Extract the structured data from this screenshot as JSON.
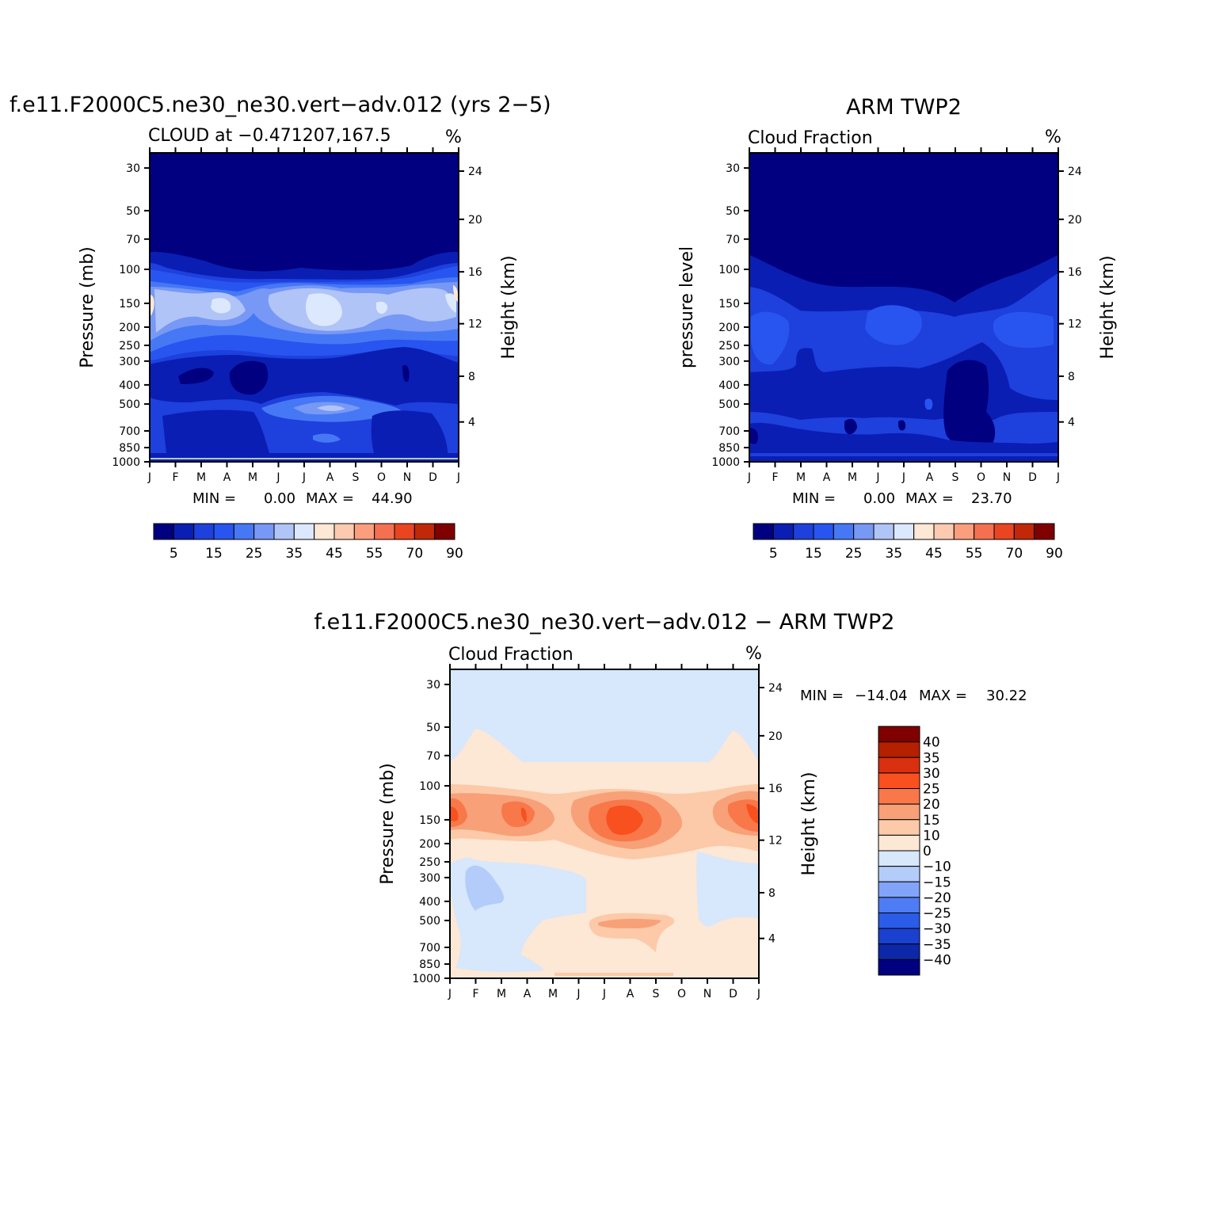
{
  "chart_data": [
    {
      "type": "heatmap",
      "id": "model",
      "title": "f.e11.F2000C5.ne30_ne30.vert-adv.012 (yrs 2-5)",
      "subtitle_left": "CLOUD at -0.471207,167.5",
      "units": "%",
      "ylabel": "Pressure (mb)",
      "ylabel_right": "Height (km)",
      "x_categories": [
        "J",
        "F",
        "M",
        "A",
        "M",
        "J",
        "J",
        "A",
        "S",
        "O",
        "N",
        "D",
        "J"
      ],
      "y_ticks": [
        "30",
        "50",
        "70",
        "100",
        "150",
        "200",
        "250",
        "300",
        "400",
        "500",
        "700",
        "850",
        "1000"
      ],
      "y_right_ticks": [
        "24",
        "20",
        "16",
        "12",
        "8",
        "4"
      ],
      "min_label": "MIN =",
      "min_value": "0.00",
      "max_label": "MAX =",
      "max_value": "44.90",
      "min": 0.0,
      "max": 44.9,
      "colorbar": {
        "colors": [
          "#000080",
          "#0a1eb4",
          "#1e40dc",
          "#2855f0",
          "#4678f5",
          "#7898f5",
          "#b0c4f8",
          "#dce8fd",
          "#fde7d5",
          "#fccab0",
          "#fa9e7d",
          "#f47050",
          "#e84520",
          "#c02808",
          "#800000"
        ],
        "labels": [
          "5",
          "15",
          "25",
          "35",
          "45",
          "55",
          "70",
          "90"
        ]
      }
    },
    {
      "type": "heatmap",
      "id": "obs",
      "title": "ARM TWP2",
      "subtitle_left": "Cloud Fraction",
      "units": "%",
      "ylabel": "pressure level",
      "ylabel_right": "Height (km)",
      "x_categories": [
        "J",
        "F",
        "M",
        "A",
        "M",
        "J",
        "J",
        "A",
        "S",
        "O",
        "N",
        "D",
        "J"
      ],
      "y_ticks": [
        "30",
        "50",
        "70",
        "100",
        "150",
        "200",
        "250",
        "300",
        "400",
        "500",
        "700",
        "850",
        "1000"
      ],
      "y_right_ticks": [
        "24",
        "20",
        "16",
        "12",
        "8",
        "4"
      ],
      "min_label": "MIN =",
      "min_value": "0.00",
      "max_label": "MAX =",
      "max_value": "23.70",
      "min": 0.0,
      "max": 23.7,
      "colorbar": {
        "colors": [
          "#000080",
          "#0a1eb4",
          "#1e40dc",
          "#2855f0",
          "#4678f5",
          "#7898f5",
          "#b0c4f8",
          "#dce8fd",
          "#fde7d5",
          "#fccab0",
          "#fa9e7d",
          "#f47050",
          "#e84520",
          "#c02808",
          "#800000"
        ],
        "labels": [
          "5",
          "15",
          "25",
          "35",
          "45",
          "55",
          "70",
          "90"
        ]
      }
    },
    {
      "type": "heatmap",
      "id": "diff",
      "title": "f.e11.F2000C5.ne30_ne30.vert-adv.012 - ARM TWP2",
      "subtitle_left": "Cloud Fraction",
      "units": "%",
      "ylabel": "Pressure (mb)",
      "ylabel_right": "Height (km)",
      "x_categories": [
        "J",
        "F",
        "M",
        "A",
        "M",
        "J",
        "J",
        "A",
        "S",
        "O",
        "N",
        "D",
        "J"
      ],
      "y_ticks": [
        "30",
        "50",
        "70",
        "100",
        "150",
        "200",
        "250",
        "300",
        "400",
        "500",
        "700",
        "850",
        "1000"
      ],
      "y_right_ticks": [
        "24",
        "20",
        "16",
        "12",
        "8",
        "4"
      ],
      "min_label": "MIN =",
      "min_value": "-14.04",
      "max_label": "MAX =",
      "max_value": "30.22",
      "min": -14.04,
      "max": 30.22,
      "colorbar": {
        "colors": [
          "#800000",
          "#b42000",
          "#d83010",
          "#f8501e",
          "#f8784a",
          "#f8a078",
          "#fccaa8",
          "#fde7d5",
          "#d7e7fc",
          "#b4ccfa",
          "#82a4f8",
          "#4e7cf5",
          "#2a5ce8",
          "#1a40d0",
          "#0c28a8",
          "#000080"
        ],
        "labels": [
          "40",
          "35",
          "30",
          "25",
          "20",
          "15",
          "10",
          "0",
          "-10",
          "-15",
          "-20",
          "-25",
          "-30",
          "-35",
          "-40"
        ]
      }
    }
  ]
}
